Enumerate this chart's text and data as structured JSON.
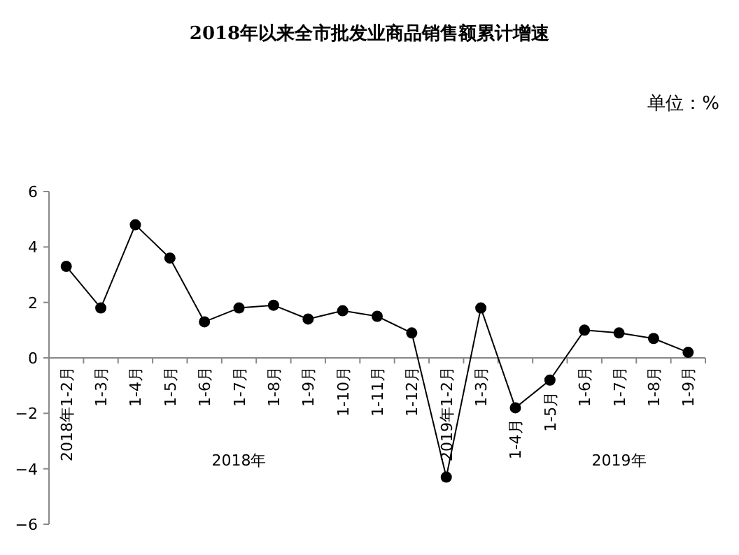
{
  "chart_data": {
    "type": "line",
    "title": "2018年以来全市批发业商品销售额累计增速",
    "annotations": [
      "单位：%",
      "2018年",
      "2019年"
    ],
    "categories": [
      "2018年1-2月",
      "1-3月",
      "1-4月",
      "1-5月",
      "1-6月",
      "1-7月",
      "1-8月",
      "1-9月",
      "1-10月",
      "1-11月",
      "1-12月",
      "2019年1-2月",
      "1-3月",
      "1-4月",
      "1-5月",
      "1-6月",
      "1-7月",
      "1-8月",
      "1-9月"
    ],
    "series": [
      {
        "color": "#000000",
        "values": [
          3.3,
          1.8,
          4.8,
          3.6,
          1.3,
          1.8,
          1.9,
          1.4,
          1.7,
          1.5,
          0.9,
          -4.3,
          1.8,
          -1.8,
          -0.8,
          1.0,
          0.9,
          0.7,
          0.2
        ]
      }
    ],
    "ylim": [
      -6,
      6
    ],
    "yticks": [
      -6,
      -4,
      -2,
      0,
      2,
      4,
      6
    ],
    "grid": false,
    "marker": "circle",
    "line_style": "solid"
  }
}
